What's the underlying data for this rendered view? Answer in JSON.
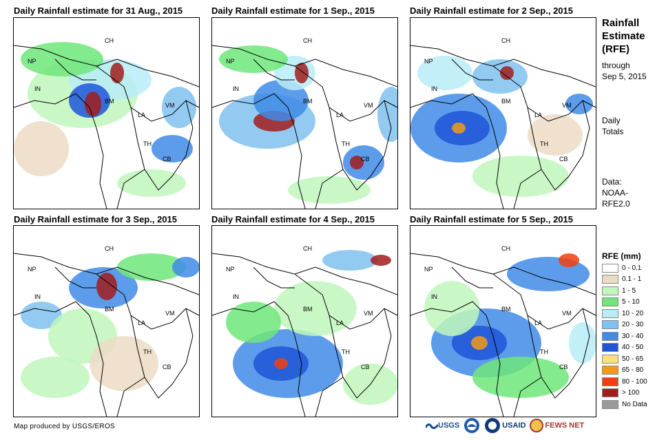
{
  "panels": [
    {
      "title": "Daily Rainfall estimate for 31 Aug., 2015",
      "labels": [
        "CH",
        "NP",
        "IN",
        "BM",
        "VM",
        "LA",
        "TH",
        "CB"
      ]
    },
    {
      "title": "Daily Rainfall estimate for 1 Sep., 2015",
      "labels": [
        "CH",
        "NP",
        "IN",
        "BM",
        "VM",
        "LA",
        "TH",
        "CB"
      ]
    },
    {
      "title": "Daily Rainfall estimate for 2 Sep., 2015",
      "labels": [
        "CH",
        "NP",
        "IN",
        "BM",
        "VM",
        "LA",
        "TH",
        "CB"
      ]
    },
    {
      "title": "Daily Rainfall estimate for 3 Sep., 2015",
      "labels": [
        "CH",
        "NP",
        "IN",
        "BM",
        "VM",
        "LA",
        "TH",
        "CB"
      ]
    },
    {
      "title": "Daily Rainfall estimate for 4 Sep., 2015",
      "labels": [
        "CH",
        "NP",
        "IN",
        "BM",
        "VM",
        "LA",
        "TH",
        "CB"
      ]
    },
    {
      "title": "Daily Rainfall estimate for 5 Sep., 2015",
      "labels": [
        "CH",
        "NP",
        "IN",
        "BM",
        "VM",
        "LA",
        "TH",
        "CB"
      ]
    }
  ],
  "sidebar": {
    "title_lines": [
      "Rainfall",
      "Estimate",
      "(RFE)"
    ],
    "through": "through",
    "date": "Sep 5, 2015",
    "daily": "Daily",
    "totals": "Totals",
    "data_label": "Data:",
    "source_1": "NOAA-",
    "source_2": "RFE2.0"
  },
  "legend": {
    "title": "RFE (mm)",
    "items": [
      {
        "label": "0 - 0.1",
        "color": "#ffffff"
      },
      {
        "label": "0.1 - 1",
        "color": "#ecdcc4"
      },
      {
        "label": "1 - 5",
        "color": "#bff7bc"
      },
      {
        "label": "5 - 10",
        "color": "#6ee67a"
      },
      {
        "label": "10 - 20",
        "color": "#b9ecf7"
      },
      {
        "label": "20 - 30",
        "color": "#7fc1f0"
      },
      {
        "label": "30 - 40",
        "color": "#3f8be6"
      },
      {
        "label": "40 - 50",
        "color": "#1f55d8"
      },
      {
        "label": "50 - 65",
        "color": "#f9e27e"
      },
      {
        "label": "65 - 80",
        "color": "#f39a19"
      },
      {
        "label": "80 - 100",
        "color": "#f1400f"
      },
      {
        "label": "> 100",
        "color": "#a11d1d"
      },
      {
        "label": "No Data",
        "color": "#9b9b9b"
      }
    ]
  },
  "footer": {
    "credit": "Map produced by USGS/EROS"
  },
  "logos": {
    "usgs": "USGS",
    "usaid": "USAID",
    "fews": "FEWS NET"
  }
}
